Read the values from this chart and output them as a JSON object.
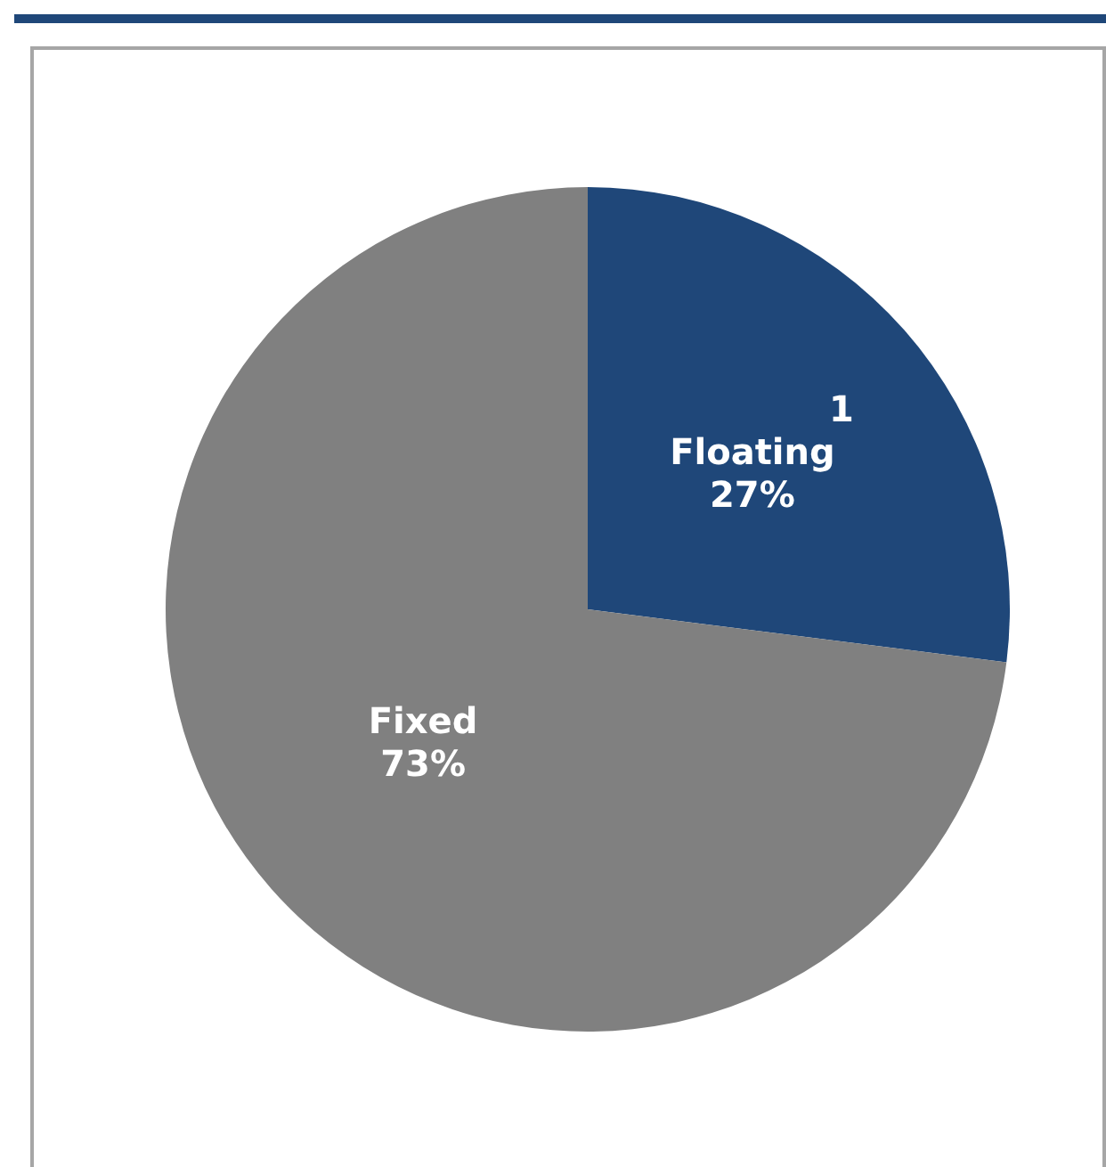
{
  "chart_data": {
    "type": "pie",
    "categories": [
      "Floating",
      "Fixed"
    ],
    "values": [
      27,
      73
    ],
    "value_labels": [
      "27%",
      "73%"
    ],
    "colors": [
      "#1f4779",
      "#808080"
    ],
    "annotations": [
      "1"
    ]
  }
}
